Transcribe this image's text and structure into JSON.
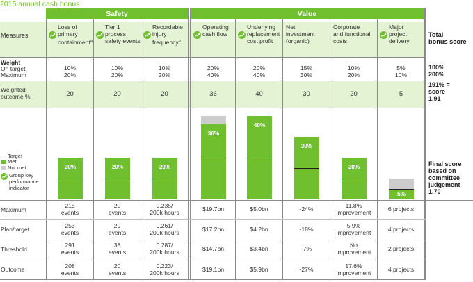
{
  "page_title": "2015 annual cash bonus",
  "sections": {
    "safety": "Safety",
    "value": "Value"
  },
  "row_labels": {
    "measures": "Measures",
    "weight": "Weight",
    "on_target": "On target",
    "maximum": "Maximum",
    "weighted_line1": "Weighted",
    "weighted_line2": "outcome %",
    "row_maximum": "Maximum",
    "row_plan": "Plan/target",
    "row_threshold": "Threshold",
    "row_outcome": "Outcome"
  },
  "measures": [
    {
      "l1": "Loss of",
      "l2": "primary",
      "l3": "containment",
      "sup": "a",
      "icon": true,
      "weight_on": "10%",
      "weight_max": "20%",
      "weighted": "20",
      "max1": "215",
      "max2": "events",
      "plan1": "253",
      "plan2": "events",
      "thr1": "291",
      "thr2": "events",
      "out1": "208",
      "out2": "events"
    },
    {
      "l1": "Tier 1",
      "l2": "process",
      "l3": "safety events",
      "sup": "",
      "icon": true,
      "weight_on": "10%",
      "weight_max": "20%",
      "weighted": "20",
      "max1": "20",
      "max2": "events",
      "plan1": "29",
      "plan2": "events",
      "thr1": "38",
      "thr2": "events",
      "out1": "20",
      "out2": "events"
    },
    {
      "l1": "Recordable",
      "l2": "injury",
      "l3": "frequency",
      "sup": "b",
      "icon": true,
      "weight_on": "10%",
      "weight_max": "20%",
      "weighted": "20",
      "max1": "0.235/",
      "max2": "200k hours",
      "plan1": "0.261/",
      "plan2": "200k hours",
      "thr1": "0.287/",
      "thr2": "200k hours",
      "out1": "0.223/",
      "out2": "200k hours"
    },
    {
      "l1": "Operating",
      "l2": "cash flow",
      "l3": "",
      "sup": "",
      "icon": true,
      "weight_on": "20%",
      "weight_max": "40%",
      "weighted": "36",
      "max1": "$19.7bn",
      "max2": "",
      "plan1": "$17.2bn",
      "plan2": "",
      "thr1": "$14.7bn",
      "thr2": "",
      "out1": "$19.1bn",
      "out2": ""
    },
    {
      "l1": "Underlying",
      "l2": "replacement",
      "l3": "cost profit",
      "sup": "",
      "icon": true,
      "weight_on": "20%",
      "weight_max": "40%",
      "weighted": "40",
      "max1": "$5.0bn",
      "max2": "",
      "plan1": "$4.2bn",
      "plan2": "",
      "thr1": "$3.4bn",
      "thr2": "",
      "out1": "$5.9bn",
      "out2": ""
    },
    {
      "l1": "Net",
      "l2": "investment",
      "l3": "(organic)",
      "sup": "",
      "icon": false,
      "weight_on": "15%",
      "weight_max": "30%",
      "weighted": "30",
      "max1": "-24%",
      "max2": "",
      "plan1": "-18%",
      "plan2": "",
      "thr1": "-7%",
      "thr2": "",
      "out1": "-27%",
      "out2": ""
    },
    {
      "l1": "Corporate",
      "l2": "and functional",
      "l3": "costs",
      "sup": "",
      "icon": false,
      "weight_on": "10%",
      "weight_max": "20%",
      "weighted": "20",
      "max1": "11.8%",
      "max2": "improvement",
      "plan1": "5.9%",
      "plan2": "improvement",
      "thr1": "No",
      "thr2": "improvement",
      "out1": "17.6%",
      "out2": "improvement"
    },
    {
      "l1": "Major",
      "l2": "project",
      "l3": "delivery",
      "sup": "",
      "icon": true,
      "weight_on": "5%",
      "weight_max": "10%",
      "weighted": "5",
      "max1": "6 projects",
      "max2": "",
      "plan1": "4 projects",
      "plan2": "",
      "thr1": "2 projects",
      "thr2": "",
      "out1": "4 projects",
      "out2": ""
    }
  ],
  "total": {
    "header1": "Total",
    "header2": "bonus score",
    "weight_on": "100%",
    "weight_max": "200%",
    "score1": "191% =",
    "score2": "score",
    "score3": "1.91",
    "final1": "Final score",
    "final2": "based on",
    "final3": "committee",
    "final4": "judgement",
    "final5": "1.70"
  },
  "legend": {
    "target": "Target",
    "met": "Met",
    "not_met": "Not met",
    "gkpi1": "Group key",
    "gkpi2": "performance",
    "gkpi3": "indicator"
  },
  "colors": {
    "met": "#6fbf2e",
    "not_met": "#cccccc",
    "light_band": "#e4f3d4",
    "target_line": "#222222"
  },
  "chart_data": {
    "type": "bar",
    "categories": [
      "Loss of primary containment",
      "Tier 1 process safety events",
      "Recordable injury frequency",
      "Operating cash flow",
      "Underlying replacement cost profit",
      "Net investment (organic)",
      "Corporate and functional costs",
      "Major project delivery"
    ],
    "met_pct": [
      20,
      20,
      20,
      36,
      40,
      30,
      20,
      5
    ],
    "max_pct": [
      20,
      20,
      20,
      40,
      40,
      30,
      20,
      10
    ],
    "target_pct": [
      10,
      10,
      10,
      20,
      20,
      15,
      10,
      5
    ],
    "labels": [
      "20%",
      "20%",
      "20%",
      "36%",
      "40%",
      "30%",
      "20%",
      "5%"
    ]
  }
}
